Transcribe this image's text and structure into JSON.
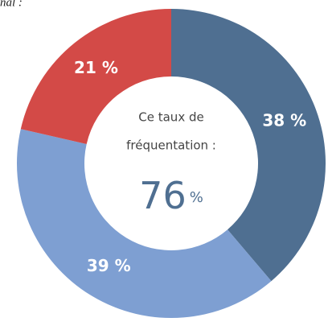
{
  "chart_data": {
    "type": "donut",
    "corner_text": "nal :",
    "center_title": [
      "Ce taux de",
      "fréquentation :"
    ],
    "center_value": "76",
    "center_unit": "%",
    "categories": [
      null,
      null,
      null
    ],
    "values": [
      38,
      39,
      21
    ],
    "value_labels": [
      "38 %",
      "39 %",
      "21 %"
    ],
    "colors": [
      "#4f6f91",
      "#7e9fd2",
      "#d34a47"
    ]
  }
}
